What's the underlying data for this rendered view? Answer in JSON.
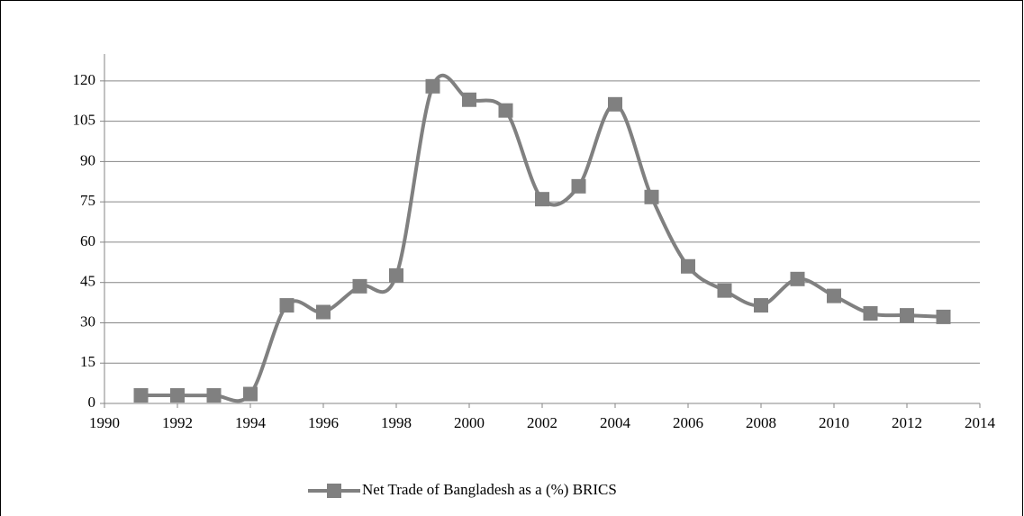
{
  "chart_data": {
    "type": "line",
    "x": [
      1991,
      1992,
      1993,
      1994,
      1995,
      1996,
      1997,
      1998,
      1999,
      2000,
      2001,
      2002,
      2003,
      2004,
      2005,
      2006,
      2007,
      2008,
      2009,
      2010,
      2011,
      2012,
      2013
    ],
    "series": [
      {
        "name": "Net Trade of Bangladesh as a (%) BRICS",
        "color": "#808080",
        "values": [
          3,
          3,
          3,
          3.5,
          36.5,
          34,
          43.6,
          47.6,
          118,
          113,
          109,
          76,
          80.8,
          111.3,
          76.8,
          51,
          42,
          36.5,
          46.3,
          40,
          33.5,
          32.8,
          32.2
        ]
      }
    ],
    "xlim": [
      1990,
      2014
    ],
    "xticks": [
      1990,
      1992,
      1994,
      1996,
      1998,
      2000,
      2002,
      2004,
      2006,
      2008,
      2010,
      2012,
      2014
    ],
    "ylim": [
      0,
      130
    ],
    "yticks": [
      0,
      15,
      30,
      45,
      60,
      75,
      90,
      105,
      120
    ],
    "grid": true,
    "legend": "bottom"
  }
}
